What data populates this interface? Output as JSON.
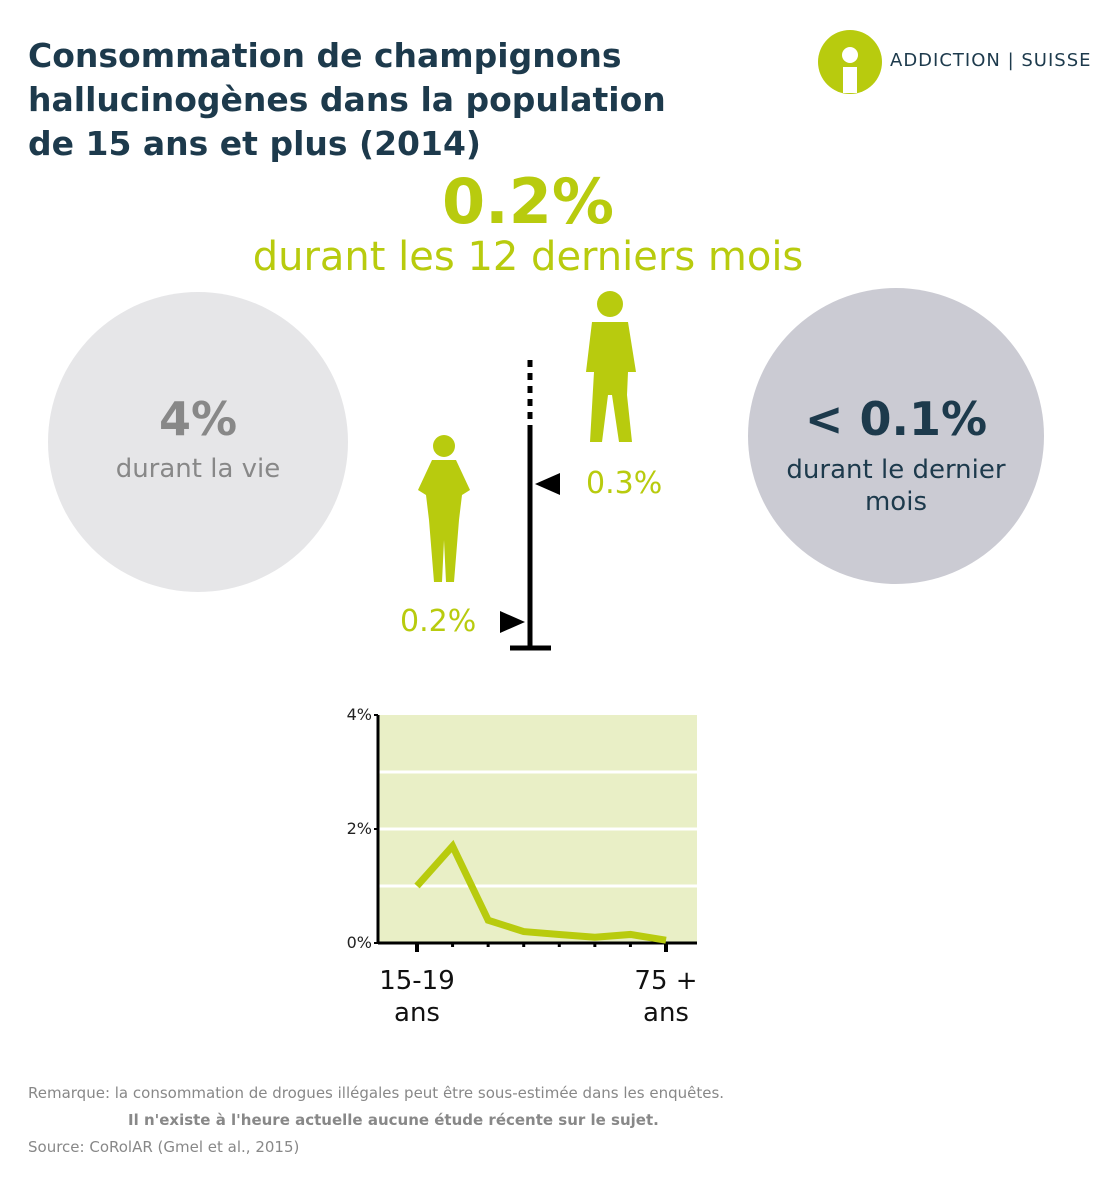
{
  "header": {
    "title": "Consommation de champignons hallucinogènes dans la population de 15 ans et plus (2014)",
    "logo": "ADDICTION | SUISSE"
  },
  "highlight": {
    "value": "0.2%",
    "label": "durant les 12 derniers mois"
  },
  "lifetime": {
    "value": "4%",
    "label": "durant la vie"
  },
  "last_month": {
    "value": "< 0.1%",
    "label": "durant le dernier mois"
  },
  "by_sex": {
    "men": "0.3%",
    "women": "0.2%"
  },
  "chart_data": {
    "type": "line",
    "categories": [
      "15-19\nans",
      null,
      null,
      null,
      null,
      null,
      null,
      "75 +\nans"
    ],
    "series": [
      {
        "color": "#b8cb0e",
        "values": [
          1.0,
          1.7,
          0.4,
          0.2,
          0.15,
          0.1,
          0.15,
          0.05
        ]
      }
    ],
    "ylim": [
      0,
      4
    ],
    "yticks": [
      {
        "value": 0,
        "label": "0%"
      },
      {
        "value": 2,
        "label": "2%"
      },
      {
        "value": 4,
        "label": "4%"
      }
    ],
    "ygrid": [
      1,
      2,
      3
    ],
    "background": "#e9efc6"
  },
  "notes": {
    "remark": "Remarque: la consommation de drogues illégales peut être sous-estimée dans les enquêtes.",
    "emphasis": "Il n'existe à l'heure actuelle aucune étude récente sur le sujet.",
    "source": "Source: CoRolAR (Gmel et al., 2015)"
  }
}
